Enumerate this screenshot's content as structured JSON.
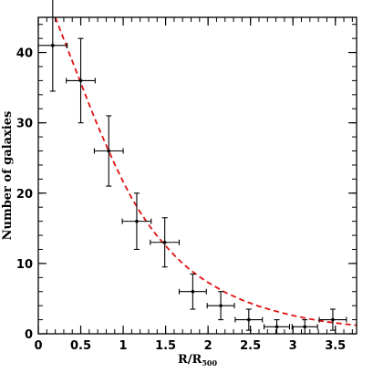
{
  "chart_data": {
    "type": "scatter",
    "title": "",
    "xlabel": "R/R",
    "xlabel_subscript": "500",
    "ylabel": "Number of galaxies",
    "xlim": [
      0,
      3.75
    ],
    "ylim": [
      0,
      45
    ],
    "x_ticks_major": [
      "0",
      "0.5",
      "1",
      "1.5",
      "2",
      "2.5",
      "3",
      "3.5"
    ],
    "y_ticks_major": [
      "0",
      "10",
      "20",
      "30",
      "40"
    ],
    "x_minor_step": 0.1,
    "y_minor_step": 2,
    "grid": false,
    "legend": "none",
    "series": [
      {
        "style": "points-with-errorbars",
        "color": "#000000",
        "points": [
          {
            "x": 0.17,
            "y": 41,
            "xerr": 0.17,
            "yerr_low": 6.5,
            "yerr_high": 7.0
          },
          {
            "x": 0.5,
            "y": 36,
            "xerr": 0.17,
            "yerr_low": 6.0,
            "yerr_high": 6.0
          },
          {
            "x": 0.83,
            "y": 26,
            "xerr": 0.17,
            "yerr_low": 5.0,
            "yerr_high": 5.0
          },
          {
            "x": 1.16,
            "y": 16,
            "xerr": 0.17,
            "yerr_low": 4.0,
            "yerr_high": 4.0
          },
          {
            "x": 1.49,
            "y": 13,
            "xerr": 0.17,
            "yerr_low": 3.5,
            "yerr_high": 3.5
          },
          {
            "x": 1.82,
            "y": 6,
            "xerr": 0.16,
            "yerr_low": 2.5,
            "yerr_high": 2.5
          },
          {
            "x": 2.15,
            "y": 4,
            "xerr": 0.16,
            "yerr_low": 2.0,
            "yerr_high": 2.0
          },
          {
            "x": 2.48,
            "y": 2,
            "xerr": 0.16,
            "yerr_low": 1.5,
            "yerr_high": 1.5
          },
          {
            "x": 2.81,
            "y": 1,
            "xerr": 0.15,
            "yerr_low": 1.0,
            "yerr_high": 1.0
          },
          {
            "x": 3.14,
            "y": 1,
            "xerr": 0.15,
            "yerr_low": 1.0,
            "yerr_high": 1.0
          },
          {
            "x": 3.47,
            "y": 2,
            "xerr": 0.16,
            "yerr_low": 1.5,
            "yerr_high": 1.5
          }
        ]
      },
      {
        "style": "dashed-line",
        "color": "#e01010",
        "x": [
          0.2,
          0.3,
          0.4,
          0.5,
          0.6,
          0.7,
          0.8,
          0.9,
          1.0,
          1.1,
          1.2,
          1.3,
          1.4,
          1.5,
          1.6,
          1.7,
          1.8,
          1.9,
          2.0,
          2.2,
          2.4,
          2.6,
          2.8,
          3.0,
          3.2,
          3.4,
          3.6,
          3.75
        ],
        "y": [
          45.0,
          41.9,
          38.8,
          35.7,
          32.6,
          29.6,
          26.8,
          24.1,
          21.6,
          19.3,
          17.3,
          15.5,
          13.9,
          12.5,
          11.2,
          10.0,
          9.0,
          8.1,
          7.3,
          5.9,
          4.8,
          3.9,
          3.2,
          2.6,
          2.1,
          1.7,
          1.4,
          1.2
        ]
      }
    ]
  }
}
